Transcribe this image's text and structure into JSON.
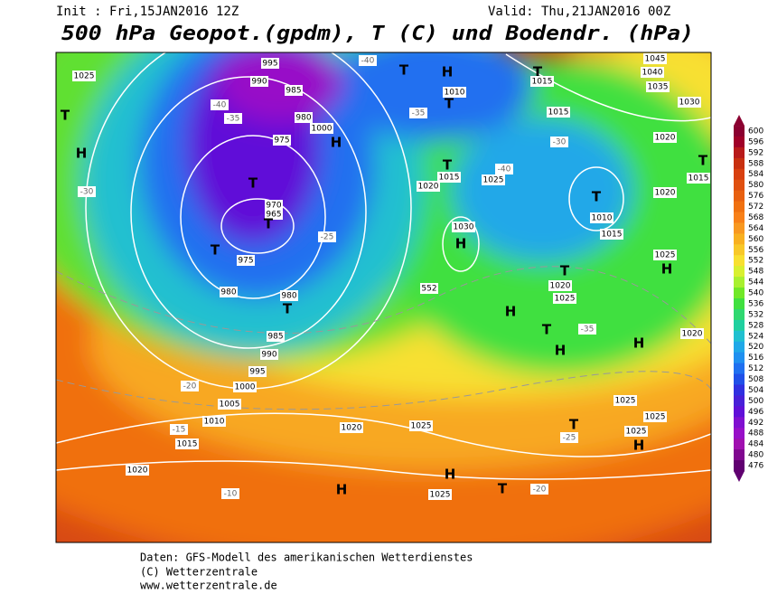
{
  "header": {
    "init": "Init : Fri,15JAN2016 12Z",
    "valid": "Valid: Thu,21JAN2016 00Z",
    "title": "500 hPa Geopot.(gpdm), T (C) und Bodendr. (hPa)"
  },
  "map": {
    "labels": [
      "1025",
      "995",
      "990",
      "985",
      "980",
      "975",
      "970",
      "965",
      "H",
      "T",
      "T",
      "T",
      "T",
      "H",
      "T",
      "H",
      "T",
      "T",
      "T",
      "H",
      "T",
      "T",
      "H",
      "T",
      "H",
      "T",
      "H",
      "H",
      "T",
      "H",
      "H",
      "H",
      "T",
      "T",
      "-40",
      "-35",
      "-30",
      "-25",
      "-20",
      "-15",
      "-10",
      "-20",
      "-25",
      "-30",
      "-35",
      "-40",
      "-40",
      "-35",
      "1000",
      "1005",
      "1010",
      "1015",
      "1020",
      "1020",
      "1025",
      "1025",
      "1030",
      "1015",
      "1020",
      "1025",
      "1010",
      "1015",
      "1015",
      "1010",
      "1015",
      "1020",
      "1025",
      "1025",
      "1020",
      "1025",
      "1025",
      "1025",
      "1040",
      "1045",
      "1035",
      "1030",
      "1020",
      "1020",
      "1015",
      "980",
      "985",
      "990",
      "995",
      "1000",
      "975",
      "980",
      "552"
    ]
  },
  "colorbar": {
    "ticks": [
      600,
      596,
      592,
      588,
      584,
      580,
      576,
      572,
      568,
      564,
      560,
      556,
      552,
      548,
      544,
      540,
      536,
      532,
      528,
      524,
      520,
      516,
      512,
      508,
      504,
      500,
      496,
      492,
      488,
      484,
      480,
      476
    ],
    "colors": [
      "#8b0030",
      "#a00028",
      "#b81a1a",
      "#c83010",
      "#d84010",
      "#e05010",
      "#e86010",
      "#f07010",
      "#f88018",
      "#f89820",
      "#f8b020",
      "#f8c828",
      "#f8e030",
      "#d8f030",
      "#a8f030",
      "#70e828",
      "#40e040",
      "#30d870",
      "#20d0a0",
      "#20c0d0",
      "#20a8e8",
      "#2090f0",
      "#2070f0",
      "#2050e8",
      "#3030e0",
      "#4820d8",
      "#6010d8",
      "#8010d0",
      "#9810c8",
      "#a010b0",
      "#800890",
      "#600070"
    ]
  },
  "footer": {
    "lines": [
      "Daten: GFS-Modell des amerikanischen Wetterdienstes",
      "(C) Wetterzentrale",
      "www.wetterzentrale.de"
    ]
  }
}
